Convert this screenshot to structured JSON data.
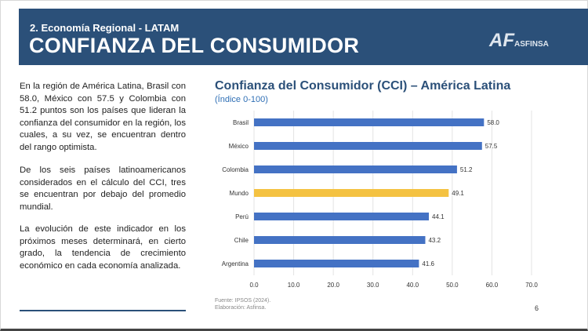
{
  "header": {
    "section": "2. Economía Regional - LATAM",
    "title": "CONFIANZA DEL CONSUMIDOR",
    "logo_text": "ASFINSA",
    "logo_mark": "AF"
  },
  "text": {
    "p1": "En la región de América Latina, Brasil con 58.0, México con 57.5 y Colombia con 51.2 puntos son los países que lideran la confianza del consumidor en la región, los cuales, a su vez, se encuentran dentro del rango optimista.",
    "p2": "De los seis países latinoamericanos considerados en el cálculo del CCI, tres se encuentran por debajo del promedio mundial.",
    "p3": "La evolución de este indicador en los próximos meses determinará, en cierto grado, la tendencia de crecimiento económico en cada economía analizada."
  },
  "footer": {
    "source": "Fuente: IPSOS (2024).",
    "elaboration": "Elaboración: Asfinsa.",
    "page": "6"
  },
  "chart_data": {
    "type": "bar",
    "orientation": "horizontal",
    "title": "Confianza del Consumidor (CCI) – América Latina",
    "subtitle": "(Índice 0-100)",
    "categories": [
      "Brasil",
      "México",
      "Colombia",
      "Mundo",
      "Perú",
      "Chile",
      "Argentina"
    ],
    "values": [
      58.0,
      57.5,
      51.2,
      49.1,
      44.1,
      43.2,
      41.6
    ],
    "highlight": "Mundo",
    "colors": {
      "default": "#4472c4",
      "highlight": "#f4c242"
    },
    "xlim": [
      0,
      70
    ],
    "xticks": [
      "0.0",
      "10.0",
      "20.0",
      "30.0",
      "40.0",
      "50.0",
      "60.0",
      "70.0"
    ],
    "grid": true
  }
}
